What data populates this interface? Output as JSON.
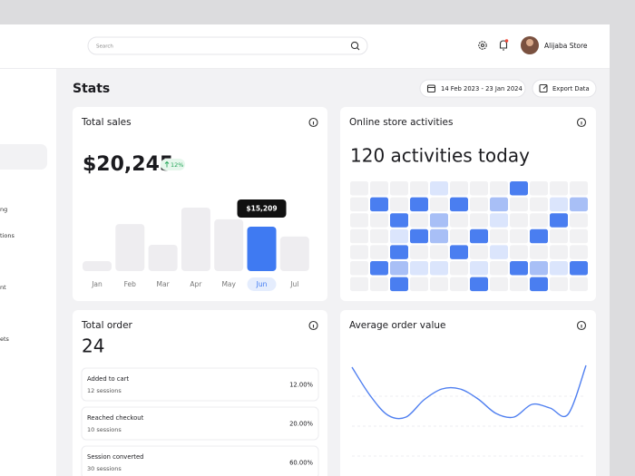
{
  "header": {
    "search_placeholder": "Search",
    "user_name": "Alijaba Store"
  },
  "sidebar": {
    "items": [
      "ng",
      "tions",
      "nt",
      "ets"
    ]
  },
  "page": {
    "title": "Stats",
    "date_range": "14 Feb 2023 - 23 Jan 2024",
    "export": "Export Data"
  },
  "total_sales": {
    "title": "Total sales",
    "amount": "$20,245",
    "change": "12%",
    "chart": {
      "type": "bar",
      "categories": [
        "Jan",
        "Feb",
        "Mar",
        "Apr",
        "May",
        "Jun",
        "Jul"
      ],
      "values": [
        3400,
        16100,
        9000,
        21700,
        17700,
        15209,
        11800
      ],
      "value_labels": [
        null,
        null,
        null,
        null,
        null,
        "$15,209",
        null
      ],
      "ylim": [
        0,
        31000
      ],
      "color": "#eeedf0",
      "highlight_color": "#3f7af2"
    }
  },
  "online_store": {
    "title": "Online store activities",
    "headline": "120 activities today",
    "level_colors": [
      "#f1f1f3",
      "#dbe5fc",
      "#a8bff6",
      "#4a7ef0"
    ],
    "grid": [
      [
        0,
        0,
        0,
        0,
        1,
        0,
        0,
        0,
        3,
        0,
        0,
        0
      ],
      [
        0,
        3,
        0,
        3,
        0,
        3,
        0,
        2,
        0,
        0,
        1,
        2
      ],
      [
        0,
        0,
        3,
        0,
        2,
        0,
        0,
        1,
        0,
        0,
        3,
        0
      ],
      [
        0,
        0,
        1,
        3,
        2,
        0,
        3,
        0,
        0,
        3,
        0,
        0
      ],
      [
        0,
        0,
        3,
        0,
        0,
        3,
        0,
        1,
        0,
        0,
        0,
        0
      ],
      [
        0,
        3,
        2,
        1,
        1,
        0,
        1,
        0,
        3,
        2,
        1,
        3
      ],
      [
        0,
        0,
        3,
        0,
        0,
        0,
        3,
        0,
        0,
        3,
        0,
        0
      ]
    ]
  },
  "total_order": {
    "title": "Total order",
    "count": "24",
    "items": [
      {
        "label": "Added to cart",
        "sessions": "12 sessions",
        "percent": "12.00%"
      },
      {
        "label": "Reached checkout",
        "sessions": "10 sessions",
        "percent": "20.00%"
      },
      {
        "label": "Session converted",
        "sessions": "30 sessions",
        "percent": "60.00%"
      }
    ]
  },
  "average_order": {
    "title": "Average order value",
    "chart": {
      "type": "line",
      "values": [
        100,
        69,
        47,
        45,
        64,
        76,
        76,
        65,
        49,
        45,
        59,
        55,
        48,
        102
      ],
      "ylim": [
        0,
        105
      ],
      "color": "#4f7ff0"
    }
  }
}
